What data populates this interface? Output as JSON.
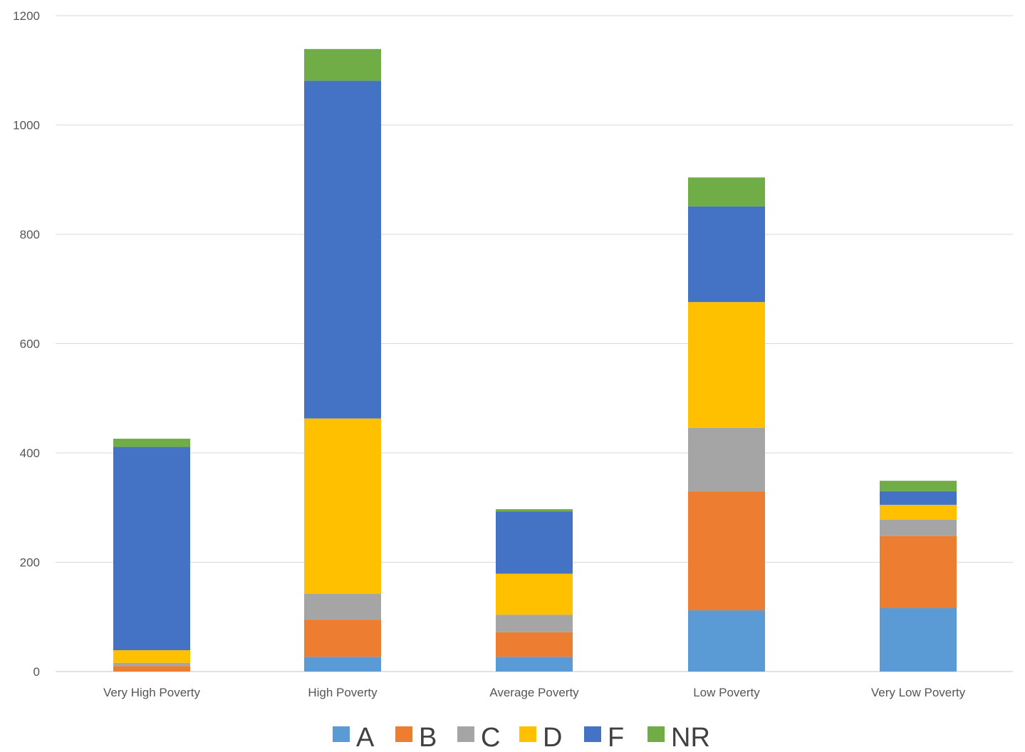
{
  "chart_data": {
    "type": "bar",
    "stacked": true,
    "categories": [
      "Very High Poverty",
      "High Poverty",
      "Average Poverty",
      "Low Poverty",
      "Very Low Poverty"
    ],
    "series": [
      {
        "name": "A",
        "color": "#5B9BD5",
        "values": [
          0,
          27,
          27,
          112,
          116
        ]
      },
      {
        "name": "B",
        "color": "#ED7D31",
        "values": [
          10,
          68,
          45,
          218,
          132
        ]
      },
      {
        "name": "C",
        "color": "#A5A5A5",
        "values": [
          6,
          47,
          32,
          116,
          30
        ]
      },
      {
        "name": "D",
        "color": "#FFC000",
        "values": [
          23,
          321,
          75,
          230,
          27
        ]
      },
      {
        "name": "F",
        "color": "#4472C4",
        "values": [
          372,
          618,
          114,
          175,
          25
        ]
      },
      {
        "name": "NR",
        "color": "#70AD47",
        "values": [
          15,
          58,
          4,
          53,
          19
        ]
      }
    ],
    "ylim": [
      0,
      1200
    ],
    "yticks": [
      "0",
      "200",
      "400",
      "600",
      "800",
      "1000",
      "1200"
    ],
    "ytick_values": [
      0,
      200,
      400,
      600,
      800,
      1000,
      1200
    ],
    "grid": true,
    "legend_position": "bottom",
    "gridline_color": "#D9D9D9",
    "tick_color": "#555555",
    "legend_text_color": "#404040"
  }
}
